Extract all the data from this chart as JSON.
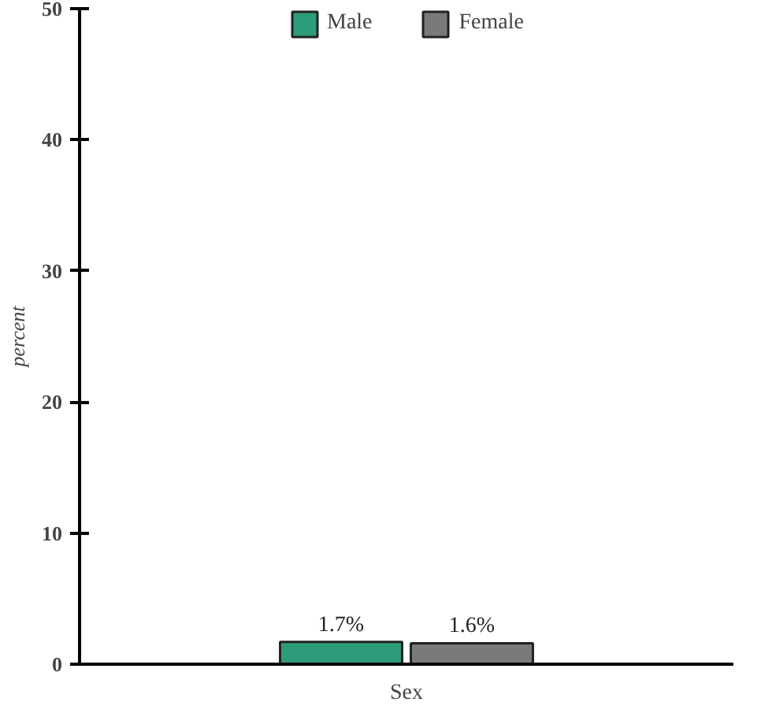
{
  "chart_data": {
    "type": "bar",
    "xlabel": "Sex",
    "ylabel": "percent",
    "categories": [
      null
    ],
    "series": [
      {
        "name": "Male",
        "color": "#2e9c7a",
        "values": [
          1.7
        ],
        "value_labels": [
          "1.7%"
        ]
      },
      {
        "name": "Female",
        "color": "#7a7a7a",
        "values": [
          1.6
        ],
        "value_labels": [
          "1.6%"
        ]
      }
    ],
    "ylim": [
      0,
      50
    ],
    "yticks": [
      0,
      10,
      20,
      30,
      40,
      50
    ],
    "legend": "top"
  }
}
